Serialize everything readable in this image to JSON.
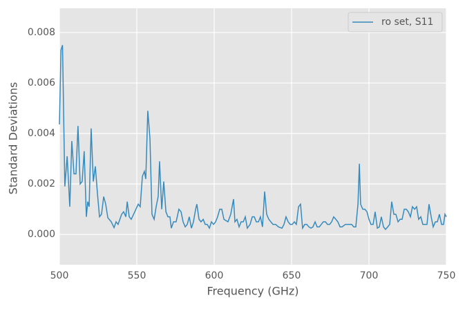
{
  "chart_data": {
    "type": "line",
    "xlabel": "Frequency (GHz)",
    "ylabel": "Standard Deviations",
    "x": [
      500,
      501,
      502,
      503.5,
      505,
      506.7,
      508,
      509.4,
      510.7,
      512,
      513.4,
      514.7,
      516,
      517.4,
      518.3,
      519.2,
      520.5,
      521.9,
      523.2,
      524.6,
      525.9,
      527.2,
      528.6,
      529.9,
      531.3,
      533.5,
      535.3,
      536.6,
      537.9,
      540.2,
      541.5,
      542.9,
      543.8,
      545.1,
      546.4,
      548.7,
      550.9,
      552.2,
      553.6,
      554.9,
      555.8,
      557.1,
      558.5,
      559.8,
      561.2,
      562.5,
      563.8,
      564.7,
      566.1,
      567.4,
      568.8,
      570.1,
      571.4,
      572.3,
      573.7,
      575.4,
      577.2,
      578.6,
      579.9,
      581.3,
      582.6,
      583.9,
      585.3,
      586.6,
      588,
      588.8,
      590.2,
      591.5,
      592.9,
      594.2,
      595.5,
      596.9,
      598.2,
      599.6,
      600.9,
      602.2,
      603.6,
      604.9,
      606.3,
      608.9,
      610.7,
      612.5,
      613.4,
      614.7,
      616.1,
      617.4,
      618.8,
      620.1,
      621.4,
      623.2,
      624.6,
      625.9,
      627.2,
      628.6,
      629.9,
      631.2,
      632.6,
      633.9,
      635.3,
      636.6,
      638,
      639.7,
      641.5,
      643.8,
      645.1,
      646.4,
      647.8,
      649.1,
      650.4,
      651.8,
      653.1,
      654.5,
      655.8,
      657.1,
      658.5,
      659.8,
      661.2,
      662.5,
      663.8,
      665.2,
      666.5,
      667.9,
      669.2,
      670.5,
      671.9,
      673.2,
      674.6,
      675.9,
      677.2,
      678.6,
      679.9,
      681.3,
      682.6,
      684.8,
      687.1,
      688.8,
      690.2,
      691.5,
      692.9,
      693.8,
      694.6,
      696,
      697.3,
      698.7,
      700,
      701.3,
      702.7,
      704,
      705.4,
      706.7,
      708,
      709.4,
      710.7,
      712.1,
      713.4,
      714.7,
      716.1,
      717.4,
      718.8,
      720.1,
      721.4,
      722.8,
      724.1,
      725.4,
      726.8,
      728.1,
      729.5,
      730.8,
      732.1,
      733.5,
      734.8,
      736.2,
      737.5,
      738.8,
      740.2,
      741.5,
      742.9,
      744.2,
      745.5,
      746.9,
      748.2,
      749.1,
      750
    ],
    "series": [
      {
        "name": "ro set, S11",
        "color": "#348abd",
        "values": [
          0.00436,
          0.0073,
          0.0075,
          0.0019,
          0.0031,
          0.0011,
          0.0037,
          0.0024,
          0.0024,
          0.0043,
          0.002,
          0.0021,
          0.0033,
          0.0007,
          0.0013,
          0.0011,
          0.0042,
          0.0021,
          0.0027,
          0.0016,
          0.0007,
          0.0008,
          0.0015,
          0.0012,
          0.00066,
          0.0005,
          0.00027,
          0.0005,
          0.0004,
          0.0008,
          0.0009,
          0.0007,
          0.0013,
          0.0007,
          0.0006,
          0.0009,
          0.0012,
          0.0011,
          0.0023,
          0.0025,
          0.0022,
          0.0049,
          0.0038,
          0.0008,
          0.0006,
          0.0011,
          0.0015,
          0.0029,
          0.001,
          0.0021,
          0.0009,
          0.0007,
          0.0007,
          0.00025,
          0.0005,
          0.0005,
          0.001,
          0.0009,
          0.0005,
          0.0003,
          0.0004,
          0.0007,
          0.00025,
          0.0005,
          0.001,
          0.0012,
          0.0006,
          0.0005,
          0.0006,
          0.0004,
          0.0004,
          0.00025,
          0.0005,
          0.0004,
          0.0005,
          0.0007,
          0.001,
          0.001,
          0.0006,
          0.0005,
          0.0008,
          0.0014,
          0.0005,
          0.0006,
          0.0003,
          0.0005,
          0.0005,
          0.0007,
          0.00025,
          0.0004,
          0.0007,
          0.0007,
          0.0005,
          0.0005,
          0.0007,
          0.0003,
          0.0017,
          0.0008,
          0.0006,
          0.0005,
          0.0004,
          0.0004,
          0.0003,
          0.00025,
          0.0004,
          0.0007,
          0.0005,
          0.0004,
          0.0004,
          0.0005,
          0.0004,
          0.0011,
          0.0012,
          0.00025,
          0.0004,
          0.0004,
          0.0003,
          0.00025,
          0.0003,
          0.0005,
          0.0003,
          0.0003,
          0.0004,
          0.0005,
          0.0005,
          0.0004,
          0.0004,
          0.0005,
          0.0007,
          0.0006,
          0.0005,
          0.0003,
          0.0003,
          0.0004,
          0.0004,
          0.0004,
          0.0003,
          0.0003,
          0.0012,
          0.0028,
          0.0012,
          0.001,
          0.001,
          0.0009,
          0.0006,
          0.0004,
          0.0004,
          0.0009,
          0.00025,
          0.0003,
          0.0007,
          0.0003,
          0.0002,
          0.0003,
          0.0004,
          0.0013,
          0.0008,
          0.0008,
          0.0005,
          0.0006,
          0.0006,
          0.001,
          0.001,
          0.0009,
          0.0007,
          0.0011,
          0.001,
          0.0011,
          0.0006,
          0.0007,
          0.0004,
          0.0004,
          0.0004,
          0.0012,
          0.0007,
          0.0003,
          0.0005,
          0.0005,
          0.0008,
          0.0004,
          0.0004,
          0.0008,
          0.0007
        ]
      }
    ],
    "xlim": [
      500,
      750
    ],
    "xticks": [
      500,
      550,
      600,
      650,
      700,
      750
    ],
    "ylim": [
      -0.0012,
      0.00896
    ],
    "yticks": [
      {
        "value": 0,
        "label": "0.000"
      },
      0.002,
      0.004,
      0.006,
      0.008
    ],
    "grid": true,
    "legend": "upper right"
  }
}
